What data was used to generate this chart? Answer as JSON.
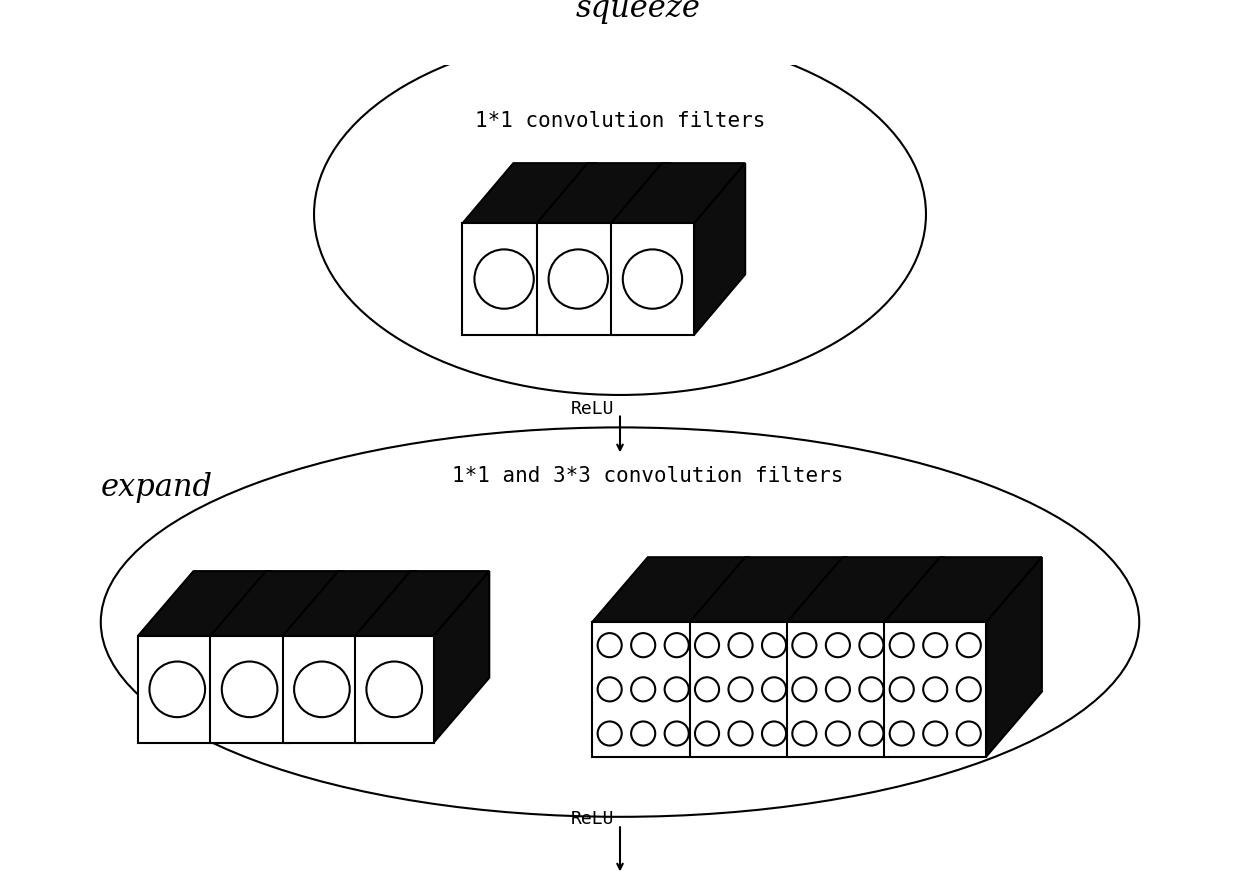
{
  "squeeze_label": "squeeze",
  "expand_label": "expand",
  "relu_label": "ReLU",
  "squeeze_filter_label": "1*1 convolution filters",
  "expand_filter_label": "1*1 and 3*3 convolution filters",
  "bg_color": "#ffffff"
}
